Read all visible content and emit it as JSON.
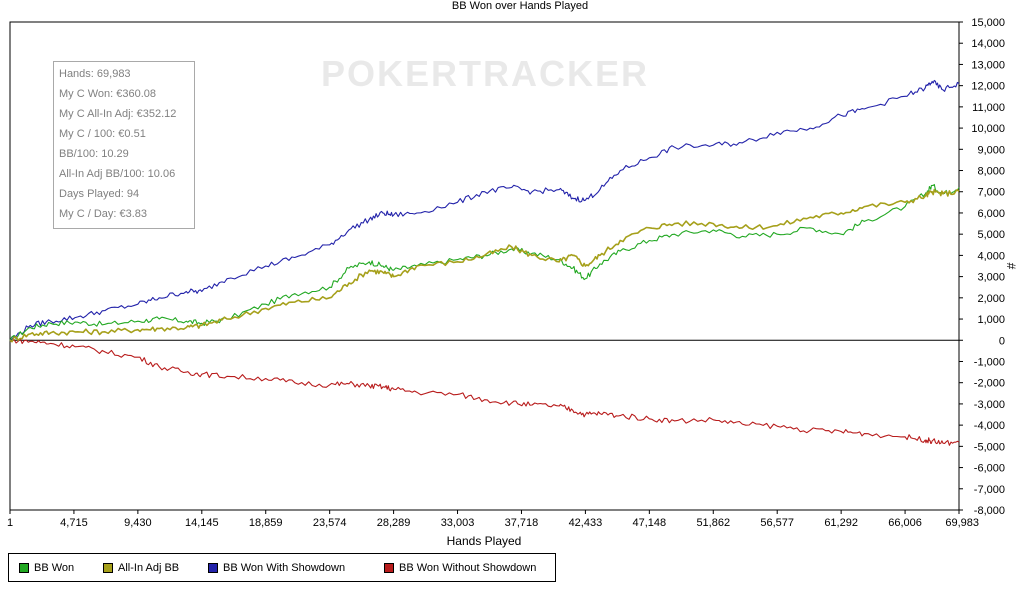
{
  "chart_data": {
    "type": "line",
    "title": "BB Won over Hands Played",
    "xlabel": "Hands Played",
    "ylabel": "#",
    "x_ticks": [
      "1",
      "4,715",
      "9,430",
      "14,145",
      "18,859",
      "23,574",
      "28,289",
      "33,003",
      "37,718",
      "42,433",
      "47,148",
      "51,862",
      "56,577",
      "61,292",
      "66,006",
      "69,983"
    ],
    "y_ticks": [
      "15,000",
      "14,000",
      "13,000",
      "12,000",
      "11,000",
      "10,000",
      "9,000",
      "8,000",
      "7,000",
      "6,000",
      "5,000",
      "4,000",
      "3,000",
      "2,000",
      "1,000",
      "0",
      "-1,000",
      "-2,000",
      "-3,000",
      "-4,000",
      "-5,000",
      "-6,000",
      "-7,000",
      "-8,000"
    ],
    "xlim": [
      1,
      69983
    ],
    "ylim": [
      -8000,
      15000
    ],
    "grid": false,
    "legend_position": "bottom-left",
    "watermark": "POKERTRACKER",
    "stats": [
      "Hands: 69,983",
      "My C Won: €360.08",
      "My C All-In Adj: €352.12",
      "My C / 100: €0.51",
      "BB/100: 10.29",
      "All-In Adj BB/100: 10.06",
      "Days Played: 94",
      "My C / Day: €3.83"
    ],
    "series": [
      {
        "name": "BB Won",
        "color": "#22a822",
        "x": [
          1,
          1500,
          3000,
          5000,
          7000,
          9430,
          11000,
          13000,
          14145,
          16000,
          18859,
          21000,
          23574,
          25000,
          26500,
          27500,
          28289,
          30000,
          33003,
          35000,
          37000,
          38500,
          40500,
          41500,
          42433,
          43500,
          45000,
          47148,
          49000,
          51862,
          54000,
          56577,
          59000,
          61292,
          63000,
          66006,
          67500,
          68000,
          68800,
          69983
        ],
        "values": [
          0,
          600,
          800,
          850,
          750,
          900,
          1000,
          900,
          800,
          1000,
          1700,
          2200,
          2500,
          3400,
          3700,
          3500,
          3300,
          3500,
          3800,
          4000,
          4300,
          4100,
          3800,
          3400,
          2900,
          3600,
          4200,
          4700,
          5000,
          5200,
          4900,
          5000,
          5300,
          5000,
          5600,
          6300,
          6900,
          7300,
          6900,
          7200
        ]
      },
      {
        "name": "All-In Adj BB",
        "color": "#a6a01b",
        "x": [
          1,
          1500,
          3000,
          5000,
          7000,
          9430,
          11000,
          13000,
          14145,
          16000,
          18859,
          21000,
          23574,
          25000,
          26500,
          27500,
          28289,
          30000,
          33003,
          35000,
          37000,
          38500,
          40500,
          41500,
          42433,
          43500,
          45000,
          47148,
          49000,
          51862,
          54000,
          56577,
          59000,
          61292,
          63000,
          66006,
          67500,
          68000,
          68800,
          69983
        ],
        "values": [
          0,
          300,
          350,
          400,
          400,
          500,
          550,
          600,
          700,
          1000,
          1500,
          1800,
          2000,
          2700,
          3300,
          3200,
          3000,
          3500,
          3700,
          4000,
          4400,
          4000,
          3700,
          4000,
          3500,
          4000,
          4700,
          5300,
          5500,
          5500,
          5300,
          5400,
          5800,
          6000,
          6300,
          6500,
          6800,
          7000,
          6900,
          7000
        ]
      },
      {
        "name": "BB Won With Showdown",
        "color": "#2323aa",
        "x": [
          1,
          1500,
          3000,
          5000,
          7000,
          9430,
          11000,
          13000,
          14145,
          16000,
          18859,
          21000,
          23574,
          25000,
          26500,
          27500,
          28289,
          30000,
          33003,
          35000,
          37000,
          38500,
          40500,
          41500,
          42433,
          43500,
          45000,
          47148,
          49000,
          51862,
          54000,
          56577,
          59000,
          61292,
          63000,
          66006,
          67500,
          68000,
          68800,
          69983
        ],
        "values": [
          0,
          700,
          900,
          1100,
          1400,
          1700,
          2000,
          2300,
          2300,
          2900,
          3500,
          3900,
          4500,
          5200,
          5700,
          6000,
          5900,
          6000,
          6500,
          7000,
          7200,
          7000,
          7100,
          6700,
          6600,
          7100,
          8000,
          8600,
          9100,
          9200,
          9300,
          9800,
          10000,
          10600,
          10900,
          11500,
          11900,
          12200,
          11800,
          12100
        ]
      },
      {
        "name": "BB Won Without Showdown",
        "color": "#b81c1c",
        "x": [
          1,
          1500,
          3000,
          5000,
          7000,
          9430,
          11000,
          13000,
          14145,
          16000,
          18859,
          21000,
          23574,
          25000,
          26500,
          27500,
          28289,
          30000,
          33003,
          35000,
          37000,
          38500,
          40500,
          41500,
          42433,
          43500,
          45000,
          47148,
          49000,
          51862,
          54000,
          56577,
          59000,
          61292,
          63000,
          66006,
          67500,
          68000,
          68800,
          69983
        ],
        "values": [
          0,
          -50,
          -150,
          -300,
          -550,
          -800,
          -1250,
          -1500,
          -1600,
          -1700,
          -1800,
          -2000,
          -2100,
          -2050,
          -2150,
          -2200,
          -2300,
          -2450,
          -2550,
          -2800,
          -2950,
          -3050,
          -3100,
          -3300,
          -3500,
          -3450,
          -3550,
          -3700,
          -3800,
          -3750,
          -3950,
          -4050,
          -4250,
          -4300,
          -4400,
          -4550,
          -4700,
          -4750,
          -4850,
          -4800
        ]
      }
    ]
  }
}
